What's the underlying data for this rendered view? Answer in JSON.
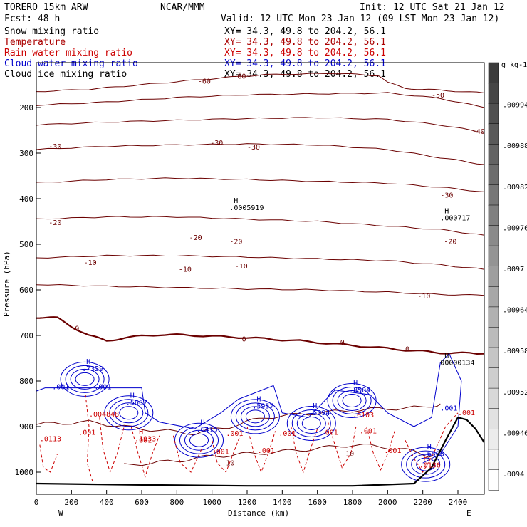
{
  "header": {
    "model": "TORERO   15km ARW",
    "center": "NCAR/MMM",
    "init": "Init: 12 UTC Sat 21 Jan 12",
    "fcst": "Fcst:   48 h",
    "valid": "Valid: 12 UTC Mon 23 Jan 12 (09 LST Mon 23 Jan 12)"
  },
  "colors": {
    "snow": "#000000",
    "temperature": "#6b0000",
    "rain": "#cc0000",
    "cloud_water": "#0000cc",
    "cloud_ice": "#000000",
    "axis": "#000000"
  },
  "legend": [
    {
      "name": "Snow mixing ratio",
      "xy": "XY=  34.3, 49.8 to 204.2, 56.1",
      "color_key": "snow"
    },
    {
      "name": "Temperature",
      "xy": "XY=  34.3, 49.8 to 204.2, 56.1",
      "color_key": "temperature"
    },
    {
      "name": "Rain water mixing ratio",
      "xy": "XY=  34.3, 49.8 to 204.2, 56.1",
      "color_key": "rain"
    },
    {
      "name": "Cloud water mixing ratio",
      "xy": "XY=  34.3, 49.8 to 204.2, 56.1",
      "color_key": "cloud_water"
    },
    {
      "name": "Cloud ice mixing ratio",
      "xy": "XY=  34.3, 49.8 to 204.2, 56.1",
      "color_key": "cloud_ice"
    }
  ],
  "chart_data": {
    "type": "cross-section contour",
    "xlabel": "Distance (km)",
    "ylabel": "Pressure (hPa)",
    "xlim": [
      0,
      2550
    ],
    "ylim": [
      1050,
      100
    ],
    "x_ticks": [
      0,
      200,
      400,
      600,
      800,
      1000,
      1200,
      1400,
      1600,
      1800,
      2000,
      2200,
      2400
    ],
    "x_tick_labels": [
      "0",
      "200",
      "400",
      "600",
      "800",
      "1000",
      "1200",
      "1400",
      "1600",
      "1800",
      "2000",
      "2200",
      "2400"
    ],
    "y_ticks": [
      200,
      300,
      400,
      500,
      600,
      700,
      800,
      900,
      1000
    ],
    "y_tick_labels": [
      "200",
      "300",
      "400",
      "500",
      "600",
      "700",
      "800",
      "900",
      "1000"
    ],
    "x_end_labels": {
      "left": "W",
      "right": "E"
    },
    "colorbar": {
      "unit": "g kg-1",
      "tick_values": [
        0.0094,
        0.00946,
        0.00952,
        0.00958,
        0.00964,
        0.0097,
        0.00976,
        0.00982,
        0.00988,
        0.00994
      ],
      "tick_labels": [
        ".0094",
        ".00946",
        ".00952",
        ".00958",
        ".00964",
        ".0097",
        ".00976",
        ".00982",
        ".00988",
        ".00994"
      ]
    },
    "temperature_contours": [
      {
        "value": -60,
        "points": [
          [
            0,
            165
          ],
          [
            300,
            160
          ],
          [
            600,
            150
          ],
          [
            900,
            140
          ],
          [
            1150,
            132
          ],
          [
            1300,
            128
          ],
          [
            1700,
            125
          ],
          [
            1950,
            130
          ],
          [
            2000,
            145
          ],
          [
            2100,
            158
          ],
          [
            2300,
            162
          ],
          [
            2550,
            168
          ]
        ]
      },
      {
        "value": -50,
        "points": [
          [
            0,
            195
          ],
          [
            400,
            188
          ],
          [
            800,
            178
          ],
          [
            1200,
            172
          ],
          [
            1600,
            170
          ],
          [
            2000,
            168
          ],
          [
            2300,
            180
          ],
          [
            2550,
            200
          ]
        ]
      },
      {
        "value": -40,
        "points": [
          [
            0,
            238
          ],
          [
            400,
            232
          ],
          [
            800,
            228
          ],
          [
            1200,
            224
          ],
          [
            1600,
            222
          ],
          [
            2000,
            226
          ],
          [
            2300,
            238
          ],
          [
            2550,
            255
          ]
        ]
      },
      {
        "value": -30,
        "points": [
          [
            0,
            292
          ],
          [
            400,
            285
          ],
          [
            800,
            282
          ],
          [
            1200,
            280
          ],
          [
            1600,
            282
          ],
          [
            2000,
            292
          ],
          [
            2300,
            310
          ],
          [
            2550,
            325
          ]
        ]
      },
      {
        "value": -20,
        "points": [
          [
            0,
            365
          ],
          [
            400,
            358
          ],
          [
            800,
            355
          ],
          [
            1200,
            358
          ],
          [
            1600,
            362
          ],
          [
            2000,
            366
          ],
          [
            2300,
            375
          ],
          [
            2550,
            385
          ]
        ]
      },
      {
        "value": -20,
        "points": [
          [
            0,
            445
          ],
          [
            400,
            440
          ],
          [
            800,
            440
          ],
          [
            1200,
            445
          ],
          [
            1600,
            450
          ],
          [
            2000,
            460
          ],
          [
            2300,
            468
          ],
          [
            2550,
            480
          ]
        ]
      },
      {
        "value": -10,
        "points": [
          [
            0,
            530
          ],
          [
            400,
            525
          ],
          [
            800,
            525
          ],
          [
            1200,
            528
          ],
          [
            1600,
            532
          ],
          [
            2000,
            536
          ],
          [
            2300,
            545
          ],
          [
            2550,
            555
          ]
        ]
      },
      {
        "value": -10,
        "points": [
          [
            0,
            588
          ],
          [
            400,
            592
          ],
          [
            800,
            595
          ],
          [
            1200,
            598
          ],
          [
            1600,
            600
          ],
          [
            2000,
            605
          ],
          [
            2300,
            610
          ],
          [
            2550,
            612
          ]
        ]
      },
      {
        "value": 0,
        "points": [
          [
            0,
            660
          ],
          [
            120,
            662
          ],
          [
            200,
            680
          ],
          [
            300,
            700
          ],
          [
            400,
            712
          ],
          [
            500,
            705
          ],
          [
            700,
            698
          ],
          [
            900,
            700
          ],
          [
            1200,
            705
          ],
          [
            1500,
            712
          ],
          [
            1800,
            722
          ],
          [
            2100,
            732
          ],
          [
            2300,
            738
          ],
          [
            2550,
            740
          ]
        ]
      }
    ],
    "temperature_labels": [
      {
        "text": "-60",
        "x": 920,
        "y": 148
      },
      {
        "text": "-60",
        "x": 1120,
        "y": 137
      },
      {
        "text": "-50",
        "x": 2250,
        "y": 178
      },
      {
        "text": "-40",
        "x": 2480,
        "y": 258
      },
      {
        "text": "-30",
        "x": 70,
        "y": 291
      },
      {
        "text": "-30",
        "x": 990,
        "y": 283
      },
      {
        "text": "-30",
        "x": 1200,
        "y": 292
      },
      {
        "text": "-30",
        "x": 2300,
        "y": 398
      },
      {
        "text": "-20",
        "x": 70,
        "y": 458
      },
      {
        "text": "-20",
        "x": 870,
        "y": 491
      },
      {
        "text": "-20",
        "x": 1100,
        "y": 499
      },
      {
        "text": "-20",
        "x": 2320,
        "y": 499
      },
      {
        "text": "-10",
        "x": 270,
        "y": 545
      },
      {
        "text": "-10",
        "x": 810,
        "y": 560
      },
      {
        "text": "-10",
        "x": 1130,
        "y": 553
      },
      {
        "text": "-10",
        "x": 2170,
        "y": 619
      },
      {
        "text": "0",
        "x": 220,
        "y": 690
      },
      {
        "text": "0",
        "x": 1170,
        "y": 713
      },
      {
        "text": "0",
        "x": 1730,
        "y": 720
      },
      {
        "text": "0",
        "x": 2100,
        "y": 735
      },
      {
        "text": "10",
        "x": 1080,
        "y": 985
      },
      {
        "text": "10",
        "x": 1760,
        "y": 965
      }
    ],
    "warm_contours": [
      {
        "value": 10,
        "points": [
          [
            0,
            895
          ],
          [
            300,
            890
          ],
          [
            600,
            905
          ],
          [
            900,
            915
          ],
          [
            1100,
            900
          ],
          [
            1300,
            880
          ],
          [
            1600,
            870
          ],
          [
            1900,
            862
          ],
          [
            2200,
            858
          ],
          [
            2300,
            850
          ]
        ]
      },
      {
        "value": 10,
        "points": [
          [
            500,
            985
          ],
          [
            800,
            975
          ],
          [
            1000,
            965
          ],
          [
            1200,
            960
          ],
          [
            1400,
            955
          ],
          [
            1600,
            948
          ],
          [
            1800,
            940
          ],
          [
            2000,
            945
          ],
          [
            2150,
            955
          ],
          [
            2250,
            965
          ]
        ]
      }
    ],
    "snow_max": {
      "text": ".0005919",
      "x": 1100,
      "y": 425,
      "marker": "H"
    },
    "snow_max_2": {
      "text": ".000717",
      "x": 2300,
      "y": 448,
      "marker": "H"
    },
    "cloud_ice_max": {
      "text": "00000134",
      "x": 2300,
      "y": 765,
      "marker": "H"
    },
    "cloud_water_labels": [
      {
        "text": ".001",
        "x": 90,
        "y": 818
      },
      {
        "text": ".001",
        "x": 330,
        "y": 818
      },
      {
        "text": ".7329",
        "x": 260,
        "y": 778,
        "marker": "H"
      },
      {
        "text": ".5667",
        "x": 510,
        "y": 852,
        "marker": "H"
      },
      {
        "text": ".6415",
        "x": 910,
        "y": 912,
        "marker": "H"
      },
      {
        "text": ".5957",
        "x": 1230,
        "y": 860,
        "marker": "H"
      },
      {
        "text": ".5094",
        "x": 1550,
        "y": 875,
        "marker": "H"
      },
      {
        "text": ".8504",
        "x": 1780,
        "y": 825,
        "marker": "H"
      },
      {
        "text": ".6508",
        "x": 2200,
        "y": 965,
        "marker": "H"
      },
      {
        "text": ".001",
        "x": 2300,
        "y": 865
      }
    ],
    "rain_labels": [
      {
        "text": ".0113",
        "x": 20,
        "y": 932
      },
      {
        "text": ".004848",
        "x": 300,
        "y": 878
      },
      {
        "text": ".001",
        "x": 240,
        "y": 918
      },
      {
        "text": ".1933",
        "x": 560,
        "y": 932,
        "marker": "H"
      },
      {
        "text": ".001",
        "x": 560,
        "y": 935
      },
      {
        "text": ".001",
        "x": 1080,
        "y": 920
      },
      {
        "text": ".001",
        "x": 1260,
        "y": 958
      },
      {
        "text": ".001",
        "x": 1380,
        "y": 920
      },
      {
        "text": ".001",
        "x": 1000,
        "y": 960
      },
      {
        "text": ".001",
        "x": 1620,
        "y": 918
      },
      {
        "text": ".001",
        "x": 1840,
        "y": 915
      },
      {
        "text": ".001",
        "x": 1980,
        "y": 958
      },
      {
        "text": ".0136",
        "x": 2180,
        "y": 990,
        "marker": "H"
      },
      {
        "text": ".001",
        "x": 2400,
        "y": 875
      },
      {
        "text": ".0103",
        "x": 1800,
        "y": 880
      }
    ],
    "terrain_base": [
      [
        0,
        1025
      ],
      [
        600,
        1028
      ],
      [
        1200,
        1030
      ],
      [
        1800,
        1030
      ],
      [
        2150,
        1025
      ],
      [
        2250,
        990
      ],
      [
        2330,
        930
      ],
      [
        2400,
        880
      ],
      [
        2450,
        885
      ],
      [
        2500,
        905
      ],
      [
        2550,
        935
      ]
    ]
  }
}
